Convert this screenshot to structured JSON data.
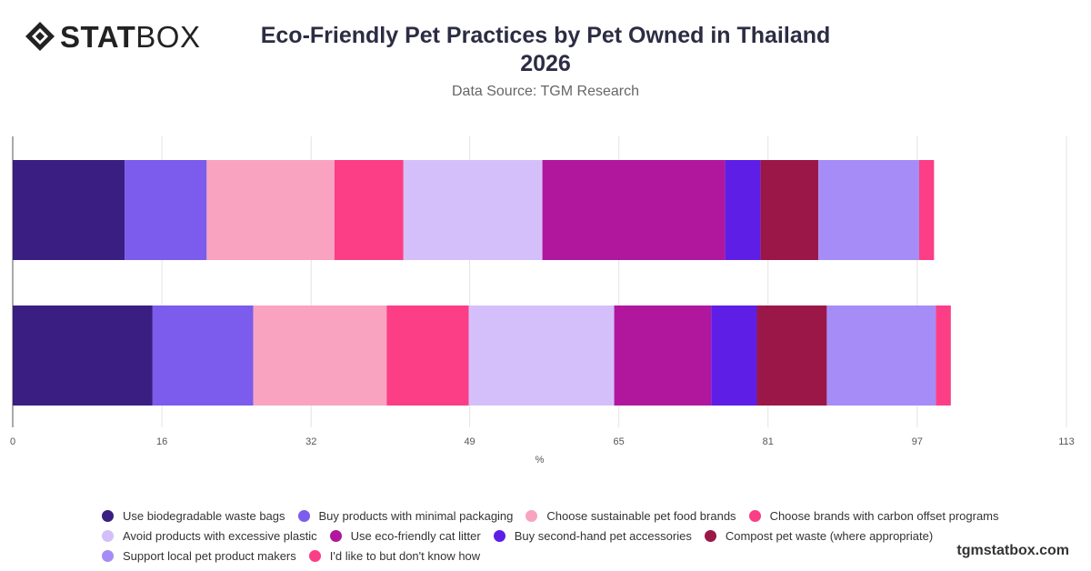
{
  "brand": {
    "logo_bold": "STAT",
    "logo_light": "BOX",
    "watermark": "tgmstatbox.com"
  },
  "header": {
    "title_line1": "Eco-Friendly Pet Practices by Pet Owned in Thailand",
    "title_line2": "2026",
    "subtitle": "Data Source: TGM Research"
  },
  "chart_data": {
    "type": "bar",
    "orientation": "horizontal",
    "stacked": true,
    "xlabel": "%",
    "xlim": [
      0,
      113
    ],
    "xticks": [
      0,
      16,
      32,
      49,
      65,
      81,
      97,
      113
    ],
    "grid": true,
    "legend_position": "bottom",
    "categories": [
      "",
      ""
    ],
    "series": [
      {
        "name": "Use biodegradable waste bags",
        "color": "#3a1e82",
        "values": [
          12.0,
          15.0
        ]
      },
      {
        "name": "Buy products with minimal packaging",
        "color": "#7b5cec",
        "values": [
          8.8,
          10.8
        ]
      },
      {
        "name": "Choose sustainable pet food brands",
        "color": "#f9a3c0",
        "values": [
          13.7,
          14.3
        ]
      },
      {
        "name": "Choose brands with carbon offset programs",
        "color": "#fb3e85",
        "values": [
          7.4,
          8.8
        ]
      },
      {
        "name": "Avoid products with excessive plastic",
        "color": "#d5bffa",
        "values": [
          14.9,
          15.6
        ]
      },
      {
        "name": "Use eco-friendly cat litter",
        "color": "#b0179d",
        "values": [
          19.6,
          10.4
        ]
      },
      {
        "name": "Buy second-hand pet accessories",
        "color": "#5e1ee6",
        "values": [
          3.8,
          4.9
        ]
      },
      {
        "name": "Compost pet waste (where appropriate)",
        "color": "#9b1748",
        "values": [
          6.2,
          7.5
        ]
      },
      {
        "name": "Support local pet product makers",
        "color": "#a68cf7",
        "values": [
          10.8,
          11.7
        ]
      },
      {
        "name": "I'd like to but don't know how",
        "color": "#fb3e85",
        "values": [
          1.6,
          1.6
        ]
      }
    ]
  }
}
